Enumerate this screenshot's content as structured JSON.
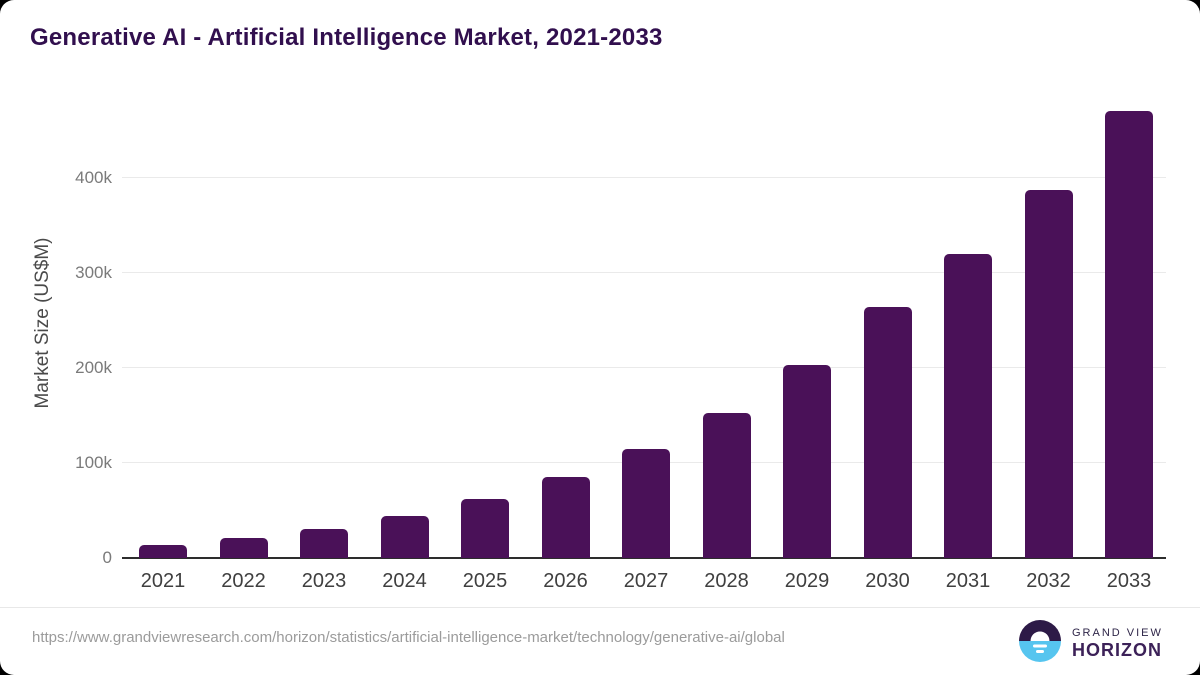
{
  "page": {
    "title": "Generative AI - Artificial Intelligence Market, 2021-2033",
    "source_url": "https://www.grandviewresearch.com/horizon/statistics/artificial-intelligence-market/technology/generative-ai/global",
    "brand": {
      "line1": "GRAND VIEW",
      "line2": "HORIZON",
      "logo_icon": "sun-over-horizon-icon"
    }
  },
  "colors": {
    "bar": "#4a1158",
    "title_text": "#310f4e",
    "gridline": "#eaeaea",
    "axis_line": "#2d2d2d",
    "y_tick_label": "#7a7a7a",
    "x_tick_label": "#3f3f3f",
    "axis_title": "#4a4a4a",
    "url_text": "#9b9b9b",
    "logo_top": "#2d1a47",
    "logo_bottom": "#56c5ef"
  },
  "chart_data": {
    "type": "bar",
    "title": "Generative AI - Artificial Intelligence Market, 2021-2033",
    "categories": [
      "2021",
      "2022",
      "2023",
      "2024",
      "2025",
      "2026",
      "2027",
      "2028",
      "2029",
      "2030",
      "2031",
      "2032",
      "2033"
    ],
    "values": [
      13700,
      21400,
      30600,
      44200,
      62100,
      85000,
      114500,
      153000,
      203000,
      264500,
      320000,
      387500,
      470500
    ],
    "unit": "US$M",
    "xlabel": "",
    "ylabel": "Market Size (US$M)",
    "ytick_labels": [
      "0",
      "100k",
      "200k",
      "300k",
      "400k"
    ],
    "ytick_values": [
      0,
      100000,
      200000,
      300000,
      400000
    ],
    "ylim": [
      0,
      482000
    ],
    "grid": "horizontal-only",
    "legend": "none",
    "bar_corner": "rounded-top"
  }
}
